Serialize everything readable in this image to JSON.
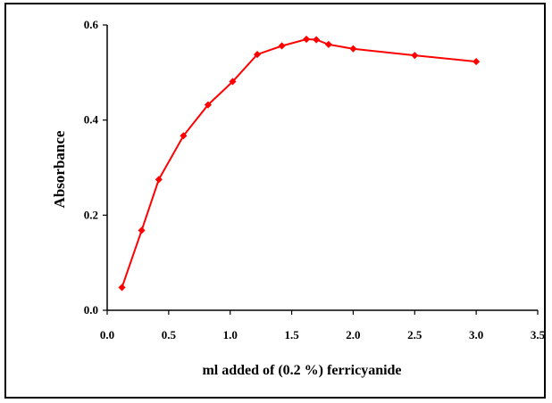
{
  "chart_data": {
    "type": "line",
    "title": "",
    "xlabel": "ml added of (0.2 %) ferricyanide",
    "ylabel": "Absorbance",
    "xlim": [
      0.0,
      3.5
    ],
    "ylim": [
      0.0,
      0.6
    ],
    "x_ticks": [
      0.0,
      0.5,
      1.0,
      1.5,
      2.0,
      2.5,
      3.0,
      3.5
    ],
    "x_tick_labels": [
      "0.0",
      "0.5",
      "1.0",
      "1.5",
      "2.0",
      "2.5",
      "3.0",
      "3.5"
    ],
    "y_ticks": [
      0.0,
      0.2,
      0.4,
      0.6
    ],
    "y_tick_labels": [
      "0.0",
      "0.2",
      "0.4",
      "0.6"
    ],
    "grid": false,
    "legend": "none",
    "series": [
      {
        "color": "#ff0000",
        "marker": "diamond",
        "x": [
          0.12,
          0.28,
          0.42,
          0.62,
          0.82,
          1.02,
          1.22,
          1.42,
          1.62,
          1.7,
          1.8,
          2.0,
          2.5,
          3.0
        ],
        "y": [
          0.048,
          0.168,
          0.275,
          0.367,
          0.432,
          0.481,
          0.538,
          0.556,
          0.57,
          0.569,
          0.559,
          0.55,
          0.536,
          0.523
        ]
      }
    ]
  }
}
